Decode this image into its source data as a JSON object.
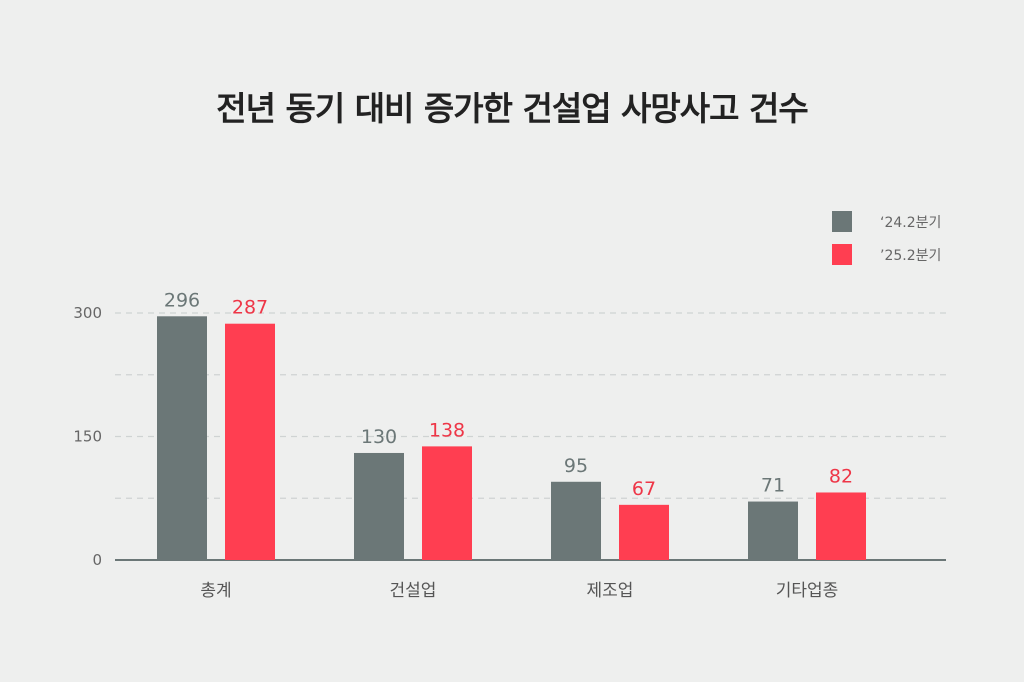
{
  "chart_data": {
    "type": "bar",
    "title": "전년 동기 대비 증가한 건설업 사망사고 건수",
    "categories": [
      "총계",
      "건설업",
      "제조업",
      "기타업종"
    ],
    "series": [
      {
        "name": "‘24.2분기",
        "values": [
          296,
          130,
          95,
          71
        ],
        "color": "#6b7777",
        "label_color": "#6b7777"
      },
      {
        "name": "’25.2분기",
        "values": [
          287,
          138,
          67,
          82
        ],
        "color": "#ff3e51",
        "label_color": "#ee3647"
      }
    ],
    "yticks": [
      0,
      150,
      300
    ],
    "ylim": [
      0,
      300
    ],
    "grid": true,
    "legend": "top-right",
    "xlabel": "",
    "ylabel": ""
  }
}
